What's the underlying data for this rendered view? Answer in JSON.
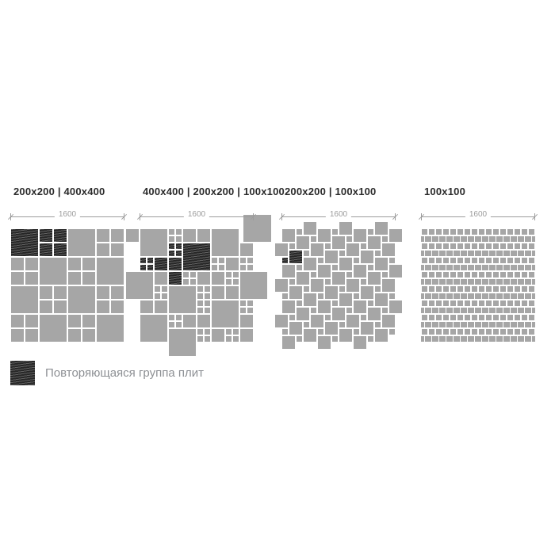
{
  "colors": {
    "background": "#ffffff",
    "tile_gray": "#a6a6a6",
    "tile_dark": "#383838",
    "header_text": "#2b2b2b",
    "dimension": "#9c9c9c",
    "legend_text": "#8d9094"
  },
  "legend": {
    "label": "Повторяющаяся группа плит",
    "swatch": "repeat-group-hatch"
  },
  "panels": [
    {
      "header": "200x200 | 400x400",
      "dim_label": "1600",
      "pattern": {
        "kind": "alt-grid",
        "blocks": 4,
        "dark_blocks": [
          [
            0,
            0
          ],
          [
            1,
            0
          ]
        ]
      }
    },
    {
      "header": "400x400 | 200x200 | 100x100",
      "dim_label": "1600",
      "pattern": {
        "kind": "explicit",
        "tiles": [
          [
            0,
            0,
            4,
            "s",
            0
          ],
          [
            10,
            0,
            4,
            "s",
            0
          ],
          [
            6,
            2,
            4,
            "s",
            1
          ],
          [
            4,
            8,
            4,
            "s",
            0
          ],
          [
            10,
            10,
            4,
            "s",
            0
          ],
          [
            0,
            12,
            4,
            "s",
            0
          ],
          [
            14.5,
            -2,
            4,
            "s",
            0
          ],
          [
            -2,
            6,
            4,
            "s",
            0
          ],
          [
            4,
            14,
            4,
            "s",
            0
          ],
          [
            14,
            6,
            4,
            "s",
            0
          ],
          [
            -2,
            0,
            2,
            "s",
            0
          ],
          [
            6,
            0,
            2,
            "s",
            0
          ],
          [
            8,
            0,
            2,
            "s",
            0
          ],
          [
            14,
            2,
            2,
            "s",
            0
          ],
          [
            2,
            4,
            2,
            "s",
            1
          ],
          [
            4,
            4,
            2,
            "s",
            1
          ],
          [
            12,
            4,
            2,
            "s",
            0
          ],
          [
            2,
            6,
            2,
            "s",
            0
          ],
          [
            4,
            6,
            2,
            "s",
            1
          ],
          [
            8,
            6,
            2,
            "s",
            0
          ],
          [
            10,
            6,
            2,
            "s",
            0
          ],
          [
            10,
            8,
            2,
            "s",
            0
          ],
          [
            12,
            8,
            2,
            "s",
            0
          ],
          [
            0,
            10,
            2,
            "s",
            0
          ],
          [
            2,
            10,
            2,
            "s",
            0
          ],
          [
            6,
            12,
            2,
            "s",
            0
          ],
          [
            8,
            12,
            2,
            "s",
            0
          ],
          [
            14,
            12,
            2,
            "s",
            0
          ],
          [
            10,
            14,
            2,
            "s",
            0
          ],
          [
            14,
            14,
            2,
            "s",
            0
          ],
          [
            4,
            0,
            2,
            "q",
            0
          ],
          [
            4,
            2,
            2,
            "q",
            1
          ],
          [
            0,
            4,
            2,
            "q",
            1
          ],
          [
            10,
            4,
            2,
            "q",
            0
          ],
          [
            14,
            4,
            2,
            "q",
            0
          ],
          [
            6,
            6,
            2,
            "q",
            0
          ],
          [
            12,
            6,
            2,
            "q",
            0
          ],
          [
            2,
            8,
            2,
            "q",
            0
          ],
          [
            8,
            8,
            2,
            "q",
            0
          ],
          [
            8,
            10,
            2,
            "q",
            0
          ],
          [
            14,
            10,
            2,
            "q",
            0
          ],
          [
            4,
            12,
            2,
            "q",
            0
          ],
          [
            8,
            14,
            2,
            "q",
            0
          ],
          [
            12,
            14,
            2,
            "q",
            0
          ]
        ]
      }
    },
    {
      "header": "200x200 | 100x100",
      "dim_label": "1600",
      "pattern": {
        "kind": "pythagorean",
        "big": 2,
        "small": 1,
        "dark_big": [
          1,
          3
        ],
        "dark_small": [
          0,
          4
        ]
      }
    },
    {
      "header": "100x100",
      "dim_label": "1600",
      "pattern": {
        "kind": "brick",
        "rows": 16,
        "cols": 16
      }
    }
  ]
}
